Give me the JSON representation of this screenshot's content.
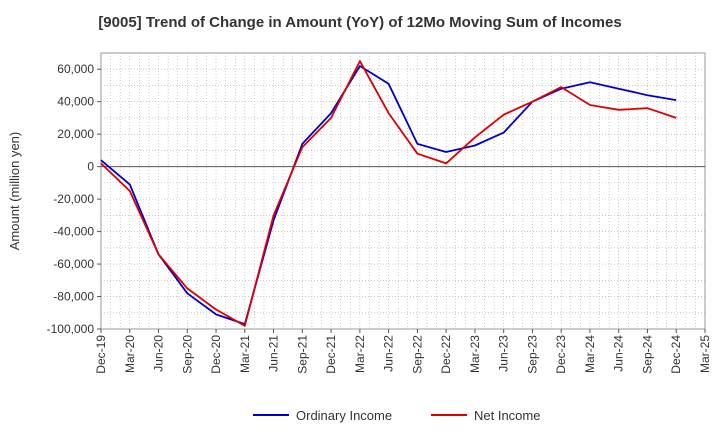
{
  "chart_data": {
    "type": "line",
    "title": "[9005]  Trend of Change in Amount (YoY) of 12Mo Moving Sum of Incomes",
    "ylabel": "Amount (million yen)",
    "xlabel": "",
    "ylim": [
      -100000,
      70000
    ],
    "yticks": [
      60000,
      40000,
      20000,
      0,
      -20000,
      -40000,
      -60000,
      -80000,
      -100000
    ],
    "ytick_labels": [
      "60,000",
      "40,000",
      "20,000",
      "0",
      "-20,000",
      "-40,000",
      "-60,000",
      "-80,000",
      "-100,000"
    ],
    "x_tick_labels": [
      "Dec-19",
      "Mar-20",
      "Jun-20",
      "Sep-20",
      "Dec-20",
      "Mar-21",
      "Jun-21",
      "Sep-21",
      "Dec-21",
      "Mar-22",
      "Jun-22",
      "Sep-22",
      "Dec-22",
      "Mar-23",
      "Jun-23",
      "Sep-23",
      "Dec-23",
      "Mar-24",
      "Jun-24",
      "Sep-24",
      "Dec-24",
      "Mar-25"
    ],
    "categories": [
      "Dec-19",
      "Mar-20",
      "Jun-20",
      "Sep-20",
      "Dec-20",
      "Mar-21",
      "Jun-21",
      "Sep-21",
      "Dec-21",
      "Mar-22",
      "Jun-22",
      "Sep-22",
      "Dec-22",
      "Mar-23",
      "Jun-23",
      "Sep-23",
      "Dec-23",
      "Mar-24",
      "Jun-24",
      "Sep-24",
      "Dec-24"
    ],
    "grid": true,
    "legend_position": "bottom-center",
    "series": [
      {
        "name": "Ordinary Income",
        "color": "#0000cc",
        "values": [
          4000,
          -11000,
          -54000,
          -78000,
          -91000,
          -97000,
          -33000,
          14000,
          33000,
          62000,
          51000,
          14000,
          9000,
          13000,
          21000,
          40000,
          48000,
          52000,
          48000,
          44000,
          41000
        ]
      },
      {
        "name": "Net Income",
        "color": "#dd0000",
        "values": [
          2000,
          -15000,
          -54000,
          -75000,
          -88000,
          -98000,
          -30000,
          12000,
          30000,
          65000,
          33000,
          8000,
          2000,
          18000,
          32000,
          40000,
          49000,
          38000,
          35000,
          36000,
          30000
        ]
      }
    ]
  }
}
